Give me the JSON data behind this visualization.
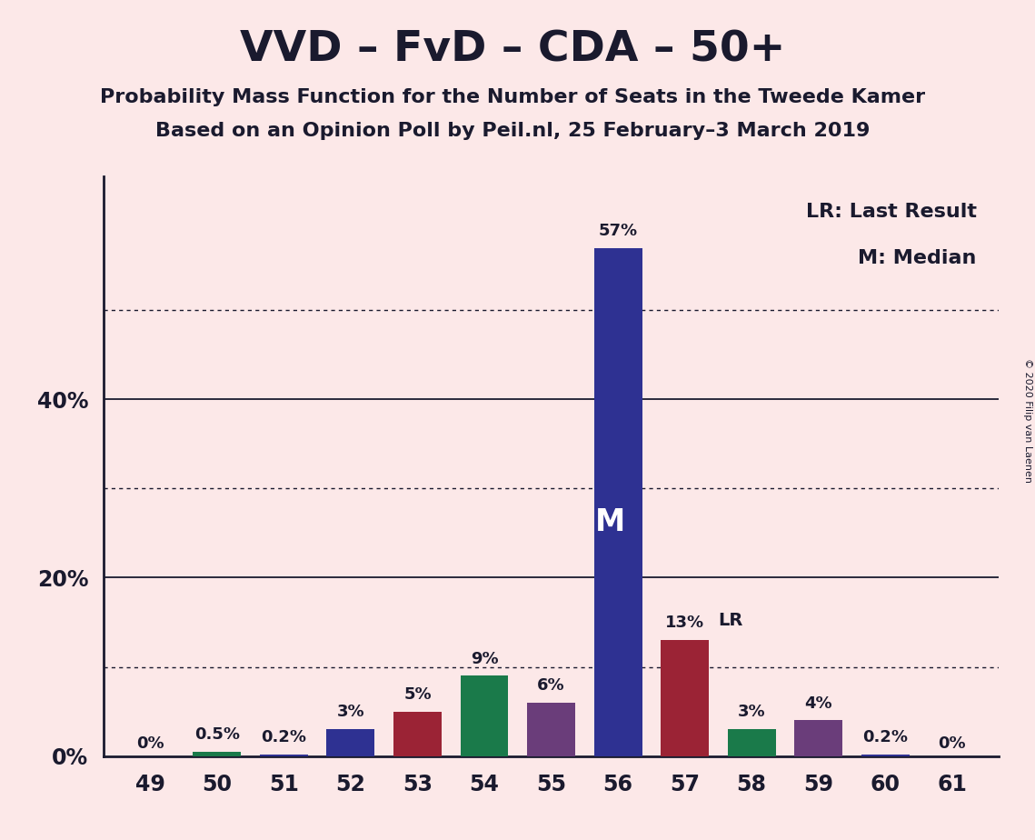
{
  "title": "VVD – FvD – CDA – 50+",
  "subtitle1": "Probability Mass Function for the Number of Seats in the Tweede Kamer",
  "subtitle2": "Based on an Opinion Poll by Peil.nl, 25 February–3 March 2019",
  "copyright": "© 2020 Filip van Laenen",
  "legend_lr": "LR: Last Result",
  "legend_m": "M: Median",
  "seats": [
    49,
    50,
    51,
    52,
    53,
    54,
    55,
    56,
    57,
    58,
    59,
    60,
    61
  ],
  "values": [
    0.0,
    0.5,
    0.2,
    3.0,
    5.0,
    9.0,
    6.0,
    57.0,
    13.0,
    3.0,
    4.0,
    0.2,
    0.0
  ],
  "bar_colors": [
    "#2e3192",
    "#1a7a4a",
    "#2e3192",
    "#2e3192",
    "#9b2335",
    "#1a7a4a",
    "#6a3d7a",
    "#2e3192",
    "#9b2335",
    "#1a7a4a",
    "#6a3d7a",
    "#2e3192",
    "#2e3192"
  ],
  "value_labels": [
    "0%",
    "0.5%",
    "0.2%",
    "3%",
    "5%",
    "9%",
    "6%",
    "57%",
    "13%",
    "3%",
    "4%",
    "0.2%",
    "0%"
  ],
  "median_seat": 56,
  "lr_seat": 57,
  "ylim_max": 65,
  "solid_yticks": [
    20,
    40
  ],
  "dotted_yticks": [
    10,
    30,
    50
  ],
  "background_color": "#fce8e8",
  "text_color": "#1a1a2e",
  "bar_width": 0.72
}
